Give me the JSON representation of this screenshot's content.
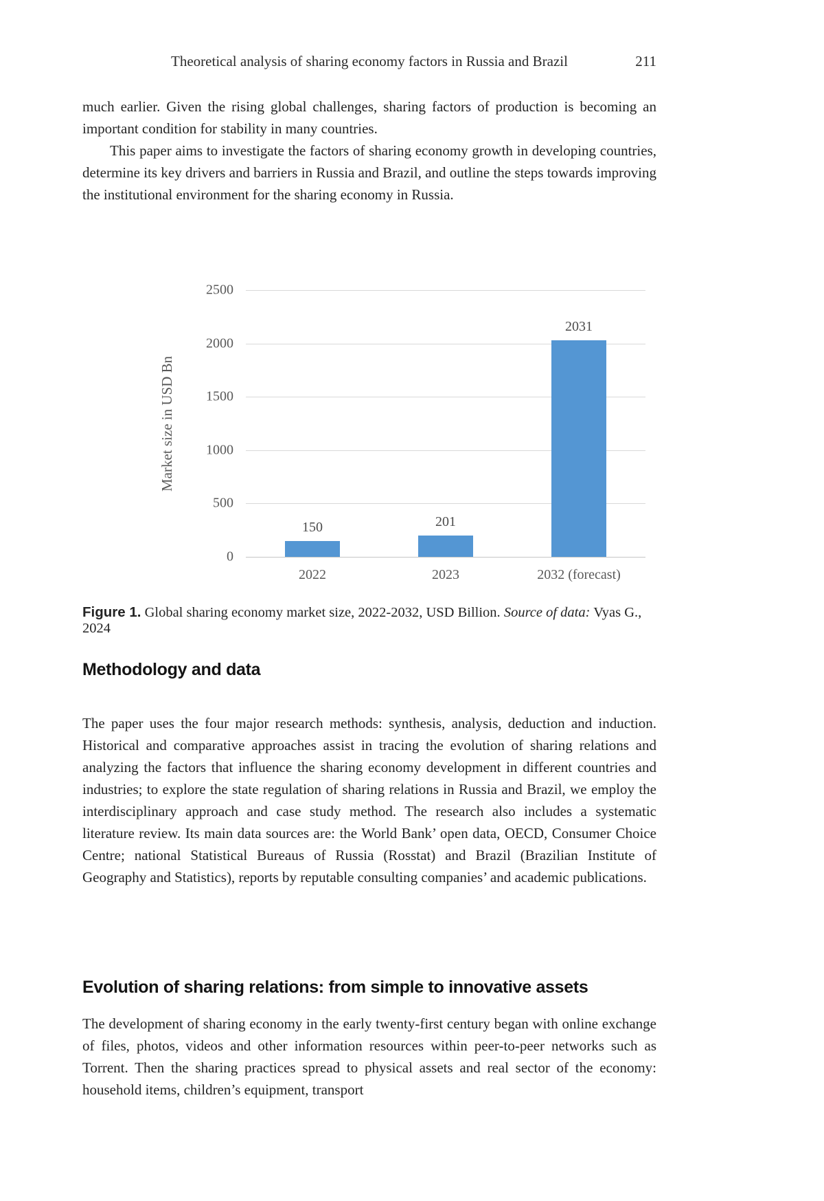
{
  "page": {
    "running_head": "Theoretical analysis of sharing economy factors in Russia and Brazil",
    "page_number": "211"
  },
  "intro": {
    "paragraph_1": "much earlier. Given the rising global challenges, sharing factors of production is becoming an important condition for stability in many countries.",
    "paragraph_2": "This paper aims to investigate the factors of sharing economy growth in developing countries, determine its key drivers and barriers in Russia and Brazil, and outline the steps towards improving the institutional environment for the sharing economy in Russia."
  },
  "chart_data": {
    "type": "bar",
    "title": "",
    "xlabel": "",
    "ylabel": "Market size in USD Bn",
    "categories": [
      "2022",
      "2023",
      "2032 (forecast)"
    ],
    "values": [
      150,
      201,
      2031
    ],
    "data_labels": [
      "150",
      "201",
      "2031"
    ],
    "ylim": [
      0,
      2500
    ],
    "yticks": [
      0,
      500,
      1000,
      1500,
      2000,
      2500
    ],
    "grid": true,
    "legend_position": "none",
    "bar_color": "#5496D3",
    "gridline_color": "#d9d9d9",
    "tick_label_color": "#595959"
  },
  "figure": {
    "label": "Figure 1.",
    "caption_text": " Global sharing economy market size, 2022-2032, USD Billion. ",
    "source_label": "Source of data:",
    "source_value": " Vyas G., 2024"
  },
  "sections": [
    {
      "heading": "Methodology and data",
      "body": "The paper uses the four major research methods: synthesis, analysis, deduction and induction. Historical and comparative approaches assist in tracing the evolution of sharing relations and analyzing the factors that influence the sharing economy development in different countries and industries; to explore the state regulation of sharing relations in Russia and Brazil, we employ the interdisciplinary approach and case study method. The research also includes a systematic literature review. Its main data sources are: the World Bank’ open data, OECD, Consumer Choice Centre; national Statistical Bureaus of Russia (Rosstat) and Brazil (Brazilian Institute of Geography and Statistics), reports by reputable consulting companies’ and academic publications."
    },
    {
      "heading": "Evolution of sharing relations: from simple to innovative assets",
      "body": "The development of sharing economy in the early twenty-first century began with online exchange of files, photos, videos and other information resources within peer-to-peer networks such as Torrent. Then the sharing practices spread to physical assets and real sector of the economy: household items, children’s equipment, transport"
    }
  ]
}
